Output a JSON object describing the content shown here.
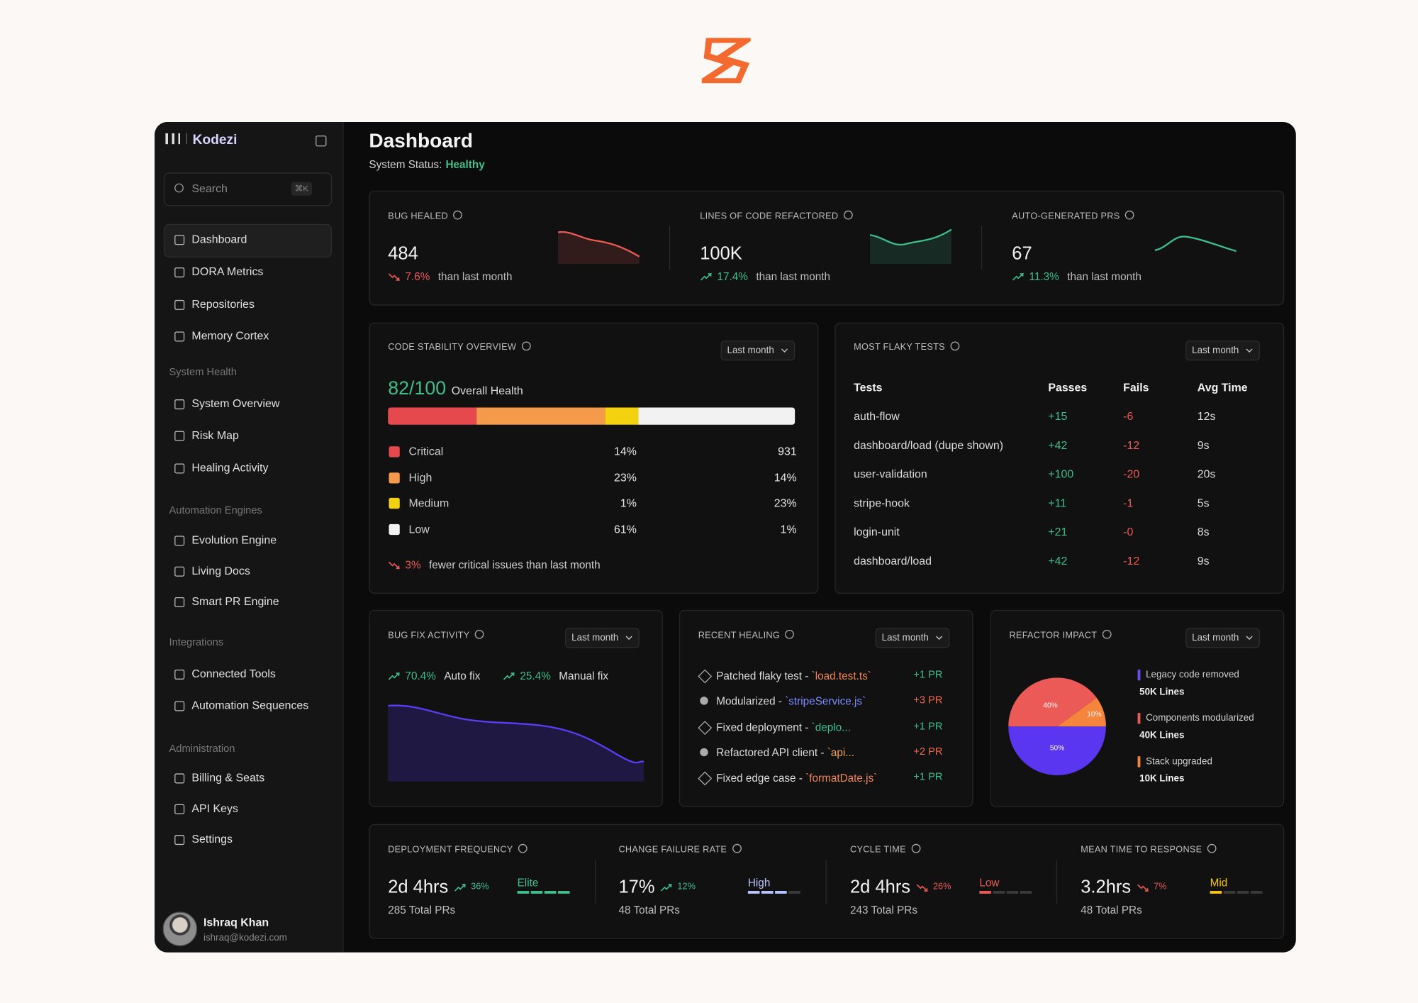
{
  "brand": {
    "name": "Kodezi"
  },
  "sidebar": {
    "search": "Search",
    "shortcut": "⌘K",
    "nav": [
      "Dashboard",
      "DORA Metrics",
      "Repositories",
      "Memory Cortex"
    ],
    "sections": [
      {
        "title": "System Health",
        "items": [
          "System Overview",
          "Risk Map",
          "Healing Activity"
        ]
      },
      {
        "title": "Automation Engines",
        "items": [
          "Evolution Engine",
          "Living Docs",
          "Smart PR Engine"
        ]
      },
      {
        "title": "Integrations",
        "items": [
          "Connected Tools",
          "Automation Sequences"
        ]
      },
      {
        "title": "Administration",
        "items": [
          "Billing & Seats",
          "API Keys",
          "Settings"
        ]
      }
    ],
    "user": {
      "name": "Ishraq Khan",
      "email": "ishraq@kodezi.com"
    }
  },
  "header": {
    "title": "Dashboard",
    "status_label": "System Status:",
    "status": "Healthy"
  },
  "kpis": [
    {
      "label": "BUG HEALED",
      "value": "484",
      "change": "7.6%",
      "direction": "down",
      "note": "than last month"
    },
    {
      "label": "LINES OF CODE REFACTORED",
      "value": "100K",
      "change": "17.4%",
      "direction": "up",
      "note": "than last month"
    },
    {
      "label": "AUTO-GENERATED PRS",
      "value": "67",
      "change": "11.3%",
      "direction": "up",
      "note": "than last month"
    }
  ],
  "stability": {
    "title": "CODE STABILITY OVERVIEW",
    "range": "Last month",
    "score": "82/100",
    "score_label": "Overall Health",
    "rows": [
      {
        "name": "Critical",
        "share": "14%",
        "count": "931",
        "color": "#e5484d"
      },
      {
        "name": "High",
        "share": "23%",
        "count": "14%",
        "color": "#f59a4a"
      },
      {
        "name": "Medium",
        "share": "1%",
        "count": "23%",
        "color": "#f5d20f"
      },
      {
        "name": "Low",
        "share": "61%",
        "count": "1%",
        "color": "#f2f2f2"
      }
    ],
    "footer_change": "3%",
    "footer_note": "fewer critical issues than last month"
  },
  "flaky": {
    "title": "MOST FLAKY TESTS",
    "range": "Last month",
    "columns": [
      "Tests",
      "Passes",
      "Fails",
      "Avg Time"
    ],
    "rows": [
      [
        "auth-flow",
        "+15",
        "-6",
        "12s"
      ],
      [
        "dashboard/load (dupe shown)",
        "+42",
        "-12",
        "9s"
      ],
      [
        "user-validation",
        "+100",
        "-20",
        "20s"
      ],
      [
        "stripe-hook",
        "+11",
        "-1",
        "5s"
      ],
      [
        "login-unit",
        "+21",
        "-0",
        "8s"
      ],
      [
        "dashboard/load",
        "+42",
        "-12",
        "9s"
      ]
    ]
  },
  "bug_fix": {
    "title": "BUG FIX ACTIVITY",
    "range": "Last month",
    "legend": [
      {
        "value": "70.4%",
        "label": "Auto fix"
      },
      {
        "value": "25.4%",
        "label": "Manual fix"
      }
    ]
  },
  "healing": {
    "title": "RECENT HEALING",
    "range": "Last month",
    "items": [
      {
        "text": "Patched flaky test - ",
        "file": "`load.test.ts`",
        "file_color": "#f0845a",
        "pr": "+1 PR",
        "pr_color": "#3fbf8c"
      },
      {
        "text": "Modularized - ",
        "file": "`stripeService.js`",
        "file_color": "#7c8cff",
        "pr": "+3 PR",
        "pr_color": "#f06a4d"
      },
      {
        "text": "Fixed deployment - ",
        "file": "`deplo...",
        "file_color": "#3fbf8c",
        "pr": "+1 PR",
        "pr_color": "#3fbf8c"
      },
      {
        "text": "Refactored API client - ",
        "file": "`api...",
        "file_color": "#f0a35a",
        "pr": "+2 PR",
        "pr_color": "#f06a4d"
      },
      {
        "text": "Fixed edge case - ",
        "file": "`formatDate.js`",
        "file_color": "#f0845a",
        "pr": "+1 PR",
        "pr_color": "#3fbf8c"
      }
    ]
  },
  "refactor": {
    "title": "REFACTOR IMPACT",
    "range": "Last month",
    "pie": {
      "values": [
        40,
        10,
        50
      ],
      "value_labels": [
        "40%",
        "10%",
        "50%"
      ],
      "colors": [
        "#ec5a57",
        "#f5843c",
        "#5b36f0"
      ]
    },
    "legend": [
      {
        "label": "Legacy code removed",
        "value": "50K Lines",
        "color": "#6a4cf5"
      },
      {
        "label": "Components modularized",
        "value": "40K Lines",
        "color": "#ec5a57"
      },
      {
        "label": "Stack upgraded",
        "value": "10K Lines",
        "color": "#f5843c"
      }
    ]
  },
  "dora": [
    {
      "label": "DEPLOYMENT FREQUENCY",
      "value": "2d 4hrs",
      "change": "36%",
      "direction": "up",
      "rating": "Elite",
      "rating_color": "#3fbf8c",
      "sub": "285 Total PRs"
    },
    {
      "label": "CHANGE FAILURE RATE",
      "value": "17%",
      "change": "12%",
      "direction": "up",
      "rating": "High",
      "rating_color": "#b8c4ff",
      "sub": "48 Total PRs"
    },
    {
      "label": "CYCLE TIME",
      "value": "2d 4hrs",
      "change": "26%",
      "direction": "down",
      "rating": "Low",
      "rating_color": "#ec5a57",
      "sub": "243 Total PRs"
    },
    {
      "label": "MEAN TIME TO RESPONSE",
      "value": "3.2hrs",
      "change": "7%",
      "direction": "down",
      "rating": "Mid",
      "rating_color": "#f5c518",
      "sub": "48 Total PRs"
    }
  ]
}
